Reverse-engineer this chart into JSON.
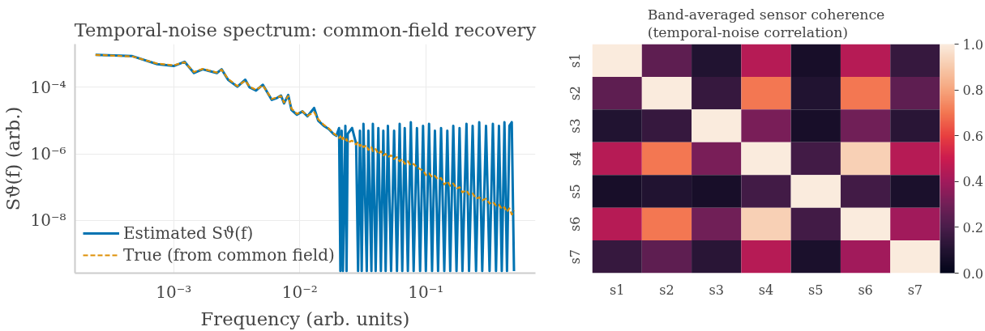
{
  "chart_data": [
    {
      "type": "line",
      "title": "Temporal-noise spectrum: common-field recovery",
      "xlabel": "Frequency (arb. units)",
      "ylabel": "Sϑ(f) (arb.)",
      "log": "xy",
      "grid": true,
      "legend": "bottom left",
      "xlim": [
        0.000165,
        0.74
      ],
      "ylim": [
        2.6e-10,
        0.002
      ],
      "xticks": [
        {
          "value": 0.001,
          "label": "10⁻³"
        },
        {
          "value": 0.01,
          "label": "10⁻²"
        },
        {
          "value": 0.1,
          "label": "10⁻¹"
        }
      ],
      "yticks": [
        {
          "value": 1e-08,
          "label": "10⁻⁸"
        },
        {
          "value": 1e-06,
          "label": "10⁻⁶"
        },
        {
          "value": 0.0001,
          "label": "10⁻⁴"
        }
      ],
      "x": [
        0.00024,
        0.00047,
        0.00074,
        0.001,
        0.00122,
        0.00145,
        0.0017,
        0.0022,
        0.0024,
        0.0027,
        0.0032,
        0.0037,
        0.004,
        0.0045,
        0.0051,
        0.006,
        0.0066,
        0.0071,
        0.0075,
        0.0081,
        0.0086,
        0.0095,
        0.0105,
        0.0115,
        0.013,
        0.014,
        0.0155,
        0.017,
        0.0185,
        0.0195,
        0.0205,
        0.021,
        0.0215,
        0.022,
        0.023,
        0.0235,
        0.024,
        0.026,
        0.028,
        0.029,
        0.03,
        0.031,
        0.032,
        0.034,
        0.035,
        0.037,
        0.038,
        0.04,
        0.042,
        0.044,
        0.046,
        0.048,
        0.05,
        0.053,
        0.056,
        0.059,
        0.062,
        0.065,
        0.068,
        0.072,
        0.076,
        0.08,
        0.085,
        0.09,
        0.095,
        0.1,
        0.106,
        0.112,
        0.118,
        0.125,
        0.132,
        0.14,
        0.148,
        0.156,
        0.165,
        0.175,
        0.185,
        0.195,
        0.21,
        0.22,
        0.235,
        0.25,
        0.265,
        0.28,
        0.3,
        0.32,
        0.34,
        0.36,
        0.38,
        0.4,
        0.42,
        0.44,
        0.46,
        0.48,
        0.5
      ],
      "series": [
        {
          "name": "Estimated Sϑ(f)",
          "color": "#0173b2",
          "line_style": "solid",
          "values": [
            0.00095,
            0.00087,
            0.0005,
            0.00044,
            0.00059,
            0.00027,
            0.00035,
            0.00027,
            0.00035,
            0.00017,
            0.000105,
            0.00017,
            0.0001,
            8e-05,
            0.00012,
            4.2e-05,
            4.8e-05,
            5.7e-05,
            3.3e-05,
            5.9e-05,
            2.1e-05,
            1.5e-05,
            1.9e-05,
            1.35e-05,
            2.4e-05,
            1e-05,
            7e-06,
            5.6e-06,
            4e-06,
            3.5e-06,
            6e-06,
            3e-10,
            5e-06,
            3e-10,
            7e-06,
            3e-10,
            4e-06,
            6e-06,
            2e-06,
            3e-10,
            5e-06,
            3e-10,
            8e-06,
            3e-10,
            5e-06,
            3e-10,
            8e-06,
            3e-10,
            6e-06,
            3e-10,
            5e-06,
            3e-10,
            7e-06,
            3e-10,
            5e-06,
            3e-10,
            8e-06,
            3e-10,
            6e-06,
            3e-10,
            9e-06,
            3e-10,
            6e-06,
            3e-10,
            7e-06,
            3e-10,
            8e-06,
            3e-10,
            5e-06,
            3e-10,
            6e-06,
            3e-10,
            5e-06,
            3e-10,
            7e-06,
            3e-10,
            6e-06,
            3e-10,
            8e-06,
            3e-10,
            7e-06,
            3e-10,
            9e-06,
            3e-10,
            7e-06,
            3e-10,
            8e-06,
            3e-10,
            7e-06,
            3e-10,
            9e-06,
            3e-10,
            7e-06,
            9e-06,
            3e-10
          ]
        },
        {
          "name": "True (from common field)",
          "color": "#de8f05",
          "line_style": "dashed",
          "values": [
            0.00095,
            0.00085,
            0.00052,
            0.00046,
            0.00057,
            0.00029,
            0.00036,
            0.00028,
            0.00034,
            0.00018,
            0.00011,
            0.00016,
            0.000105,
            8.5e-05,
            0.000115,
            4.5e-05,
            5e-05,
            5.5e-05,
            3.5e-05,
            5.5e-05,
            2.3e-05,
            1.6e-05,
            1.9e-05,
            1.4e-05,
            1.8e-05,
            1.1e-05,
            7.5e-06,
            5.8e-06,
            4.2e-06,
            3.6e-06,
            3e-06,
            3.4e-06,
            2.6e-06,
            3.1e-06,
            2.4e-06,
            2.8e-06,
            2.2e-06,
            2.5e-06,
            1.9e-06,
            2.3e-06,
            1.7e-06,
            2e-06,
            1.6e-06,
            1.8e-06,
            1.3e-06,
            1.6e-06,
            1.2e-06,
            1.4e-06,
            1e-06,
            1.2e-06,
            9e-07,
            1e-06,
            8e-07,
            9e-07,
            7e-07,
            8e-07,
            6e-07,
            7e-07,
            5e-07,
            6e-07,
            4.5e-07,
            5e-07,
            4e-07,
            3.5e-07,
            3.2e-07,
            2.3e-07,
            2.6e-07,
            2e-07,
            2.2e-07,
            1.7e-07,
            1.9e-07,
            1.2e-07,
            1.5e-07,
            1.1e-07,
            1.3e-07,
            9e-08,
            1e-07,
            7e-08,
            8e-08,
            6e-08,
            6.5e-08,
            4.5e-08,
            5e-08,
            4e-08,
            4.5e-08,
            3.2e-08,
            3.6e-08,
            2.8e-08,
            3e-08,
            2.2e-08,
            2.5e-08,
            1.8e-08,
            2.3e-08,
            1.5e-08,
            2e-08
          ]
        }
      ]
    },
    {
      "type": "heatmap",
      "title": "Band-averaged sensor coherence\n(temporal-noise correlation)",
      "categories": [
        "s1",
        "s2",
        "s3",
        "s4",
        "s5",
        "s6",
        "s7"
      ],
      "y_categories": [
        "s1",
        "s2",
        "s3",
        "s4",
        "s5",
        "s6",
        "s7"
      ],
      "cells": [
        [
          1.0,
          0.25,
          0.1,
          0.45,
          0.07,
          0.45,
          0.15
        ],
        [
          0.25,
          1.0,
          0.15,
          0.7,
          0.1,
          0.7,
          0.25
        ],
        [
          0.1,
          0.15,
          1.0,
          0.32,
          0.07,
          0.3,
          0.12
        ],
        [
          0.45,
          0.7,
          0.32,
          1.0,
          0.18,
          0.92,
          0.45
        ],
        [
          0.07,
          0.1,
          0.07,
          0.18,
          1.0,
          0.18,
          0.08
        ],
        [
          0.45,
          0.7,
          0.3,
          0.92,
          0.18,
          1.0,
          0.4
        ],
        [
          0.15,
          0.25,
          0.12,
          0.45,
          0.08,
          0.4,
          1.0
        ]
      ],
      "clim": [
        0,
        1
      ],
      "cticks": [
        {
          "value": 0,
          "label": "0.0"
        },
        {
          "value": 0.2,
          "label": "0.2"
        },
        {
          "value": 0.4,
          "label": "0.4"
        },
        {
          "value": 0.6,
          "label": "0.6"
        },
        {
          "value": 0.8,
          "label": "0.8"
        },
        {
          "value": 1,
          "label": "1.0"
        }
      ]
    }
  ]
}
